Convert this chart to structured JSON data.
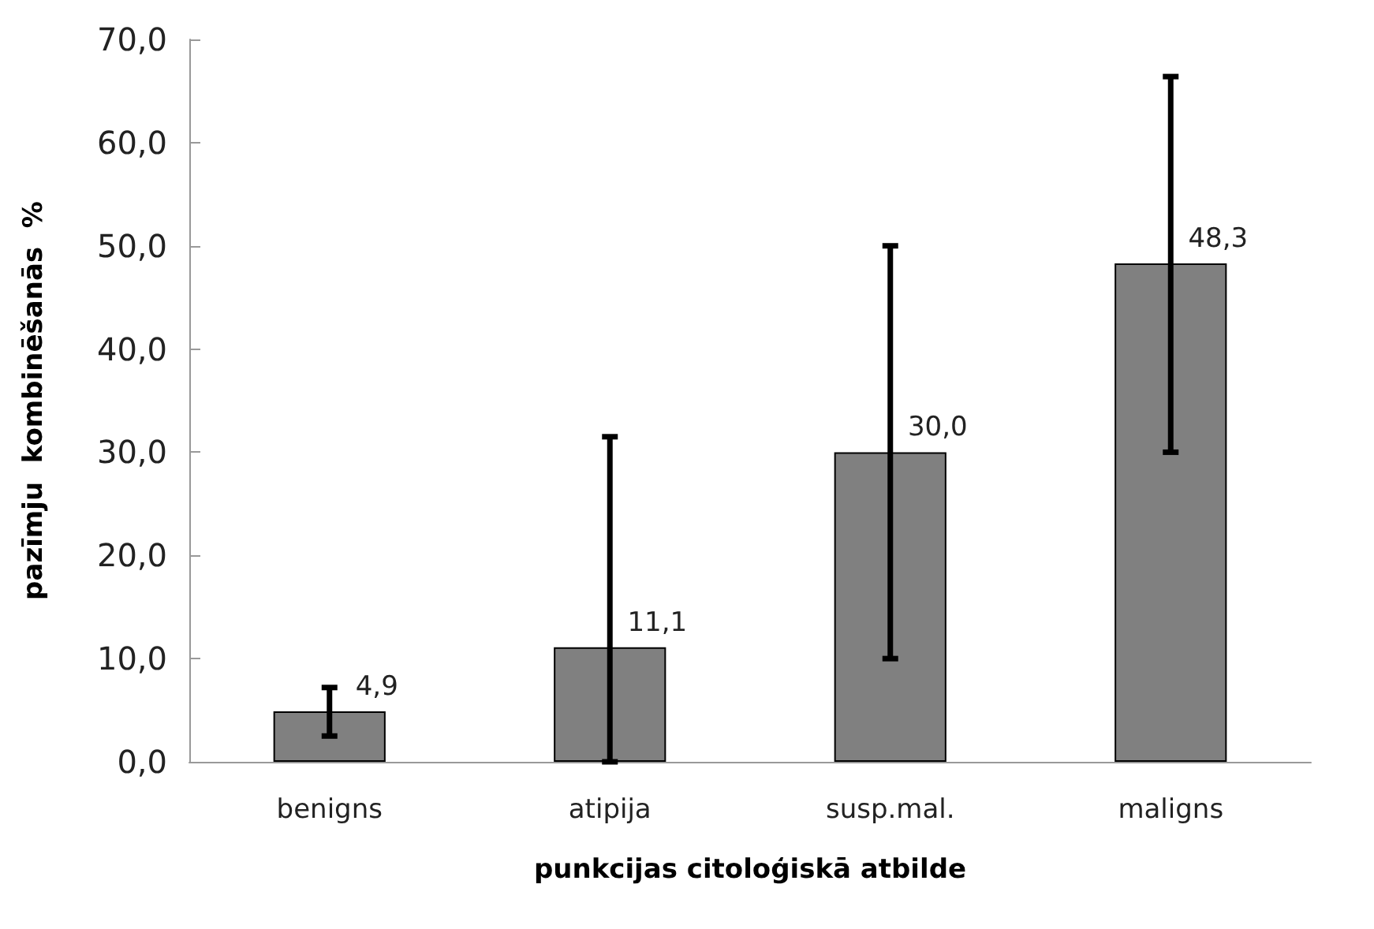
{
  "chart_data": {
    "type": "bar",
    "xlabel": "punkcijas citoloģiskā atbilde",
    "ylabel": "pazīmju  kombinēšanās  %",
    "categories": [
      "benigns",
      "atipija",
      "susp.mal.",
      "maligns"
    ],
    "values": [
      4.9,
      11.1,
      30.0,
      48.3
    ],
    "color": "#808080",
    "errors": [
      [
        2.5,
        7.2
      ],
      [
        0,
        31.5
      ],
      [
        10,
        50
      ],
      [
        30,
        66.4
      ]
    ],
    "value_labels": [
      "4,9",
      "11,1",
      "30,0",
      "48,3"
    ],
    "ylim": [
      0,
      70
    ],
    "yticks": [
      {
        "value": 0,
        "label": "0,0"
      },
      {
        "value": 10,
        "label": "10,0"
      },
      {
        "value": 20,
        "label": "20,0"
      },
      {
        "value": 30,
        "label": "30,0"
      },
      {
        "value": 40,
        "label": "40,0"
      },
      {
        "value": 50,
        "label": "50,0"
      },
      {
        "value": 60,
        "label": "60,0"
      },
      {
        "value": 70,
        "label": "70,0"
      }
    ],
    "grid": false
  }
}
